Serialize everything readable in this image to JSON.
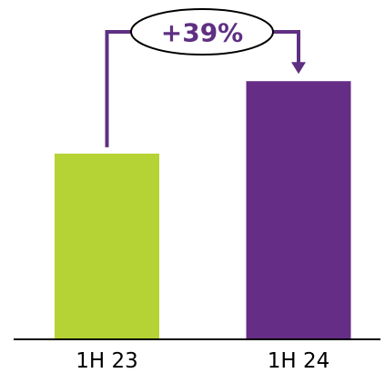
{
  "chart_data": {
    "type": "bar",
    "categories": [
      "1H 23",
      "1H 24"
    ],
    "values": [
      100,
      139
    ],
    "bar_colors": [
      "#b5d334",
      "#662d86"
    ],
    "annotation": {
      "label": "+39%",
      "color": "#5f2f82",
      "from": "1H 23",
      "to": "1H 24"
    },
    "ylim": [
      0,
      168
    ],
    "grid": false,
    "legend": "none",
    "axis_color": "#000000"
  }
}
